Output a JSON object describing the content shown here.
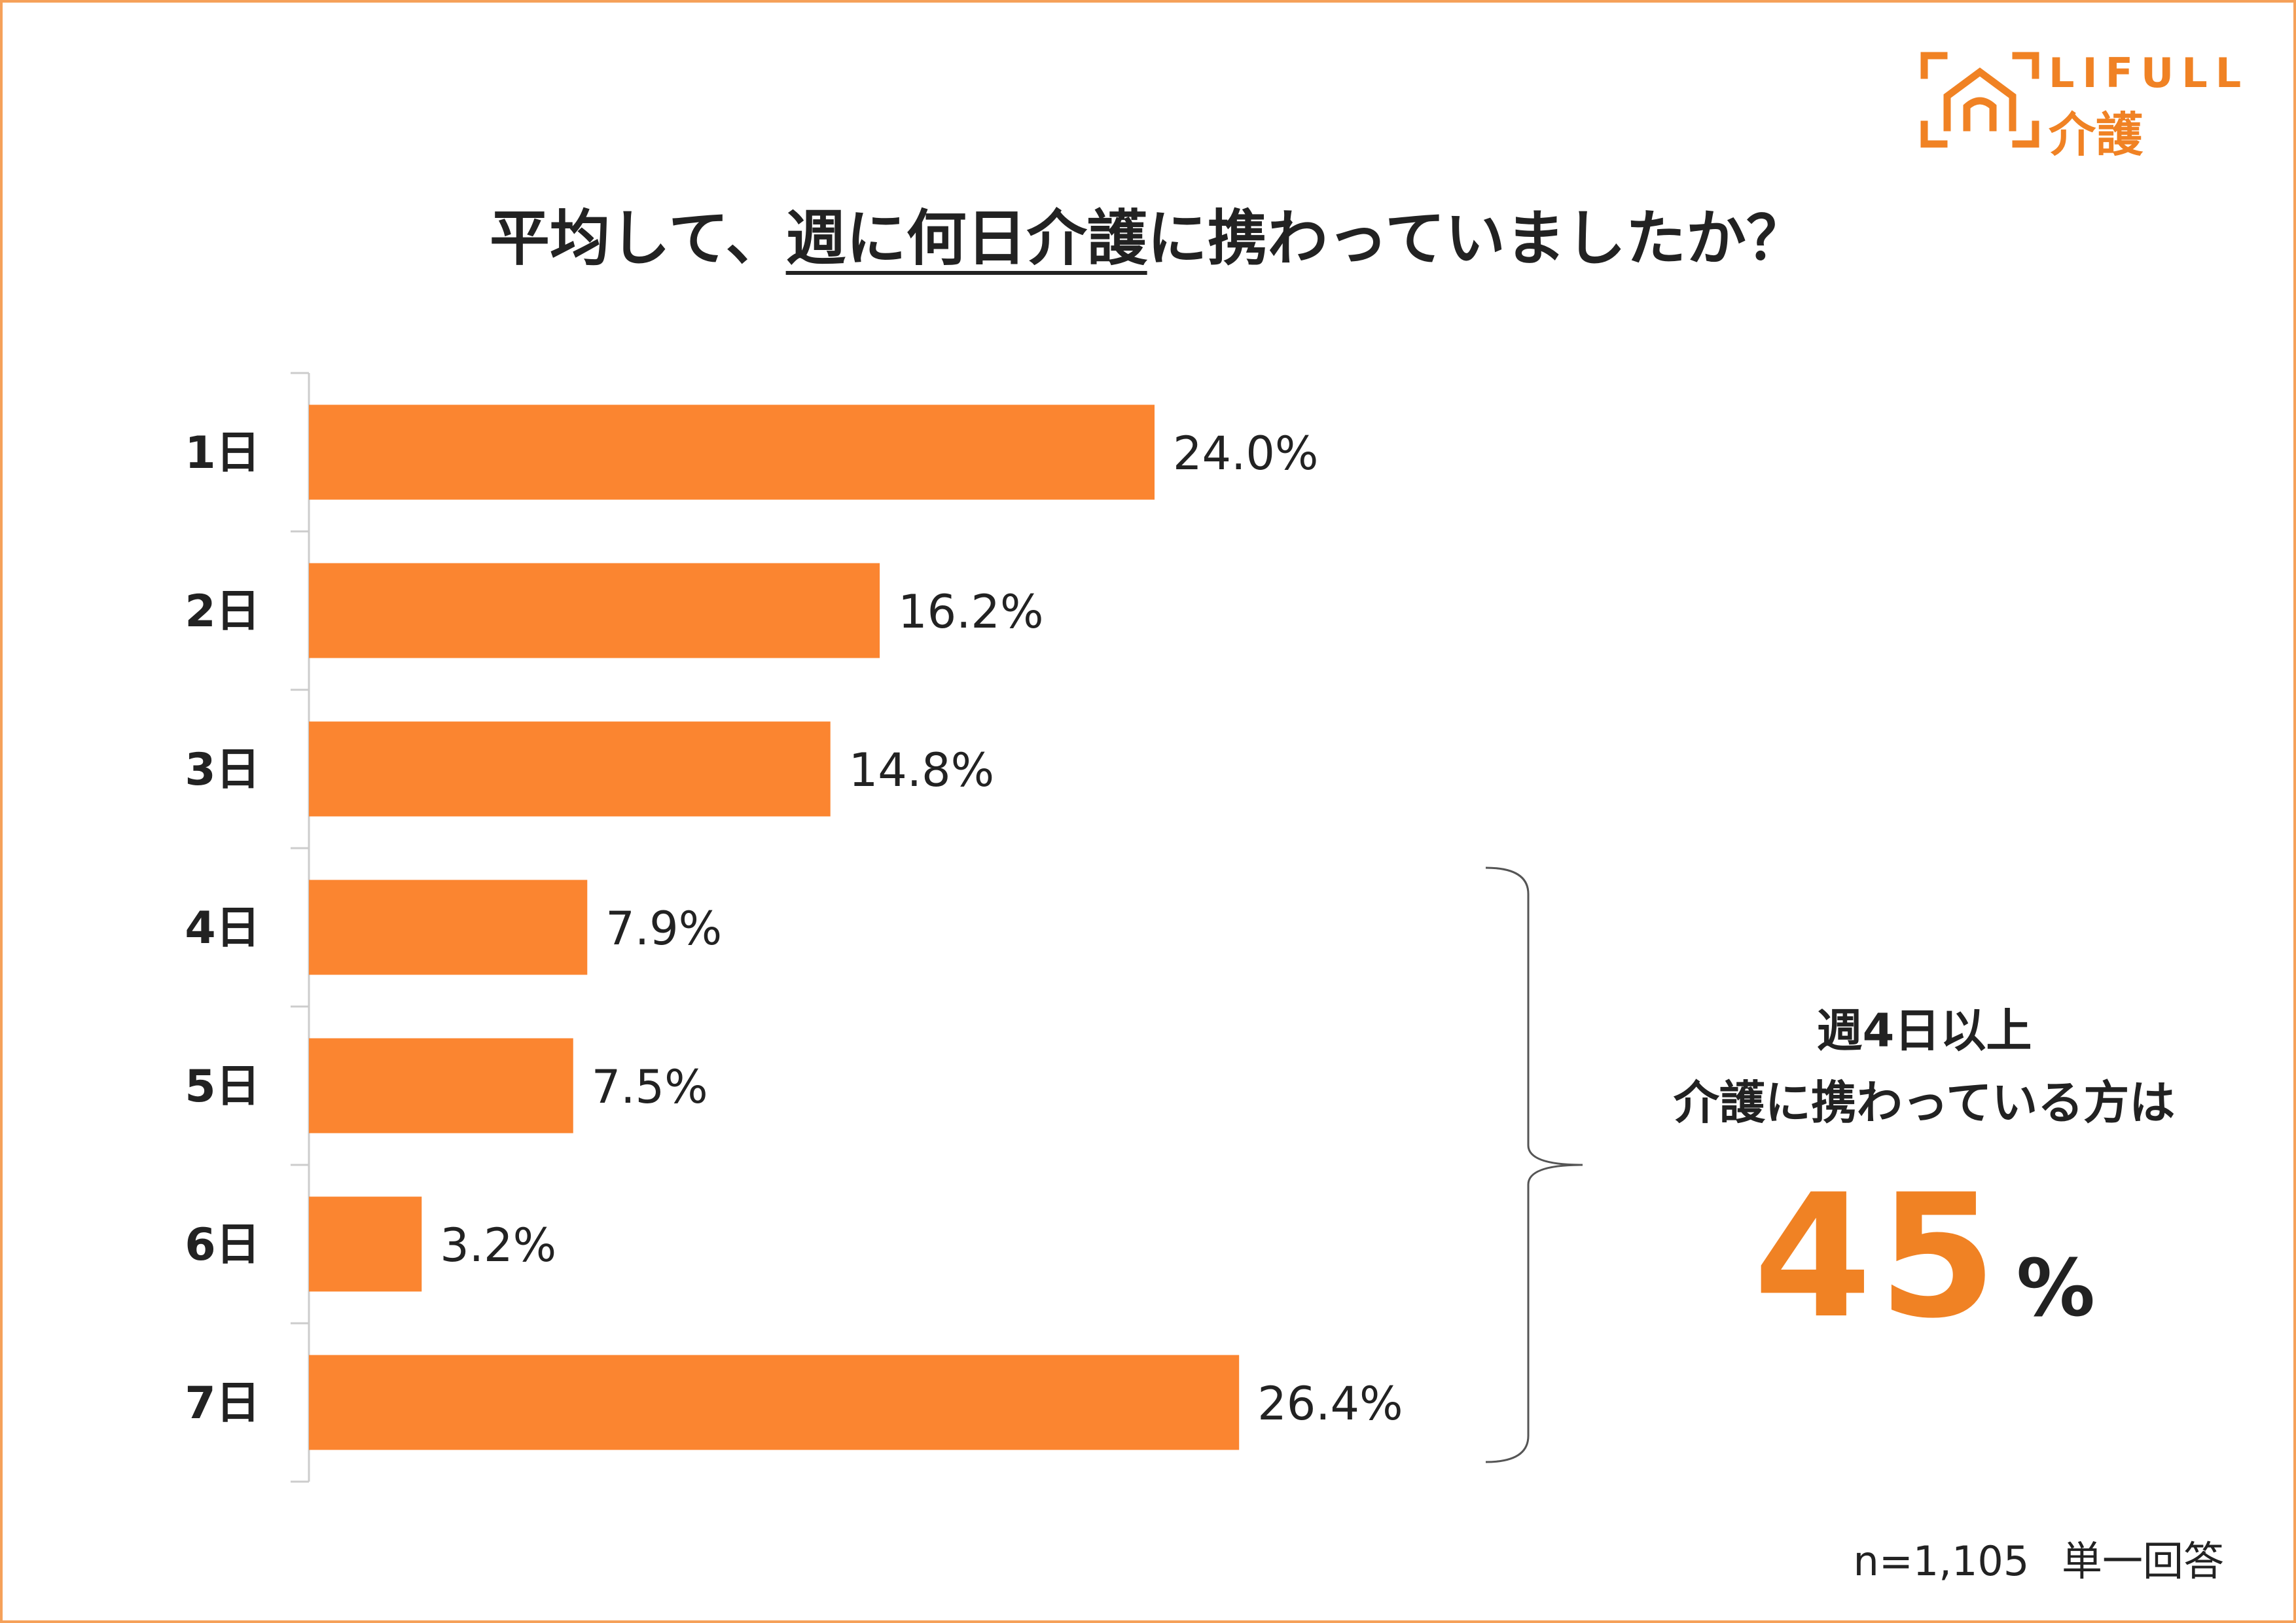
{
  "logo": {
    "brand": "LIFULL",
    "sub": "介護",
    "icon": "house-bracket-icon"
  },
  "title": {
    "part1": "平均して、",
    "underlined": "週に何日介護",
    "part2": "に携わっていましたか？"
  },
  "chart_data": {
    "type": "bar",
    "orientation": "horizontal",
    "categories": [
      "1日",
      "2日",
      "3日",
      "4日",
      "5日",
      "6日",
      "7日"
    ],
    "values": [
      24.0,
      16.2,
      14.8,
      7.9,
      7.5,
      3.2,
      26.4
    ],
    "value_labels": [
      "24.0%",
      "16.2%",
      "14.8%",
      "7.9%",
      "7.5%",
      "3.2%",
      "26.4%"
    ],
    "title": "平均して、週に何日介護に携わっていましたか？",
    "xlabel": "",
    "ylabel": "",
    "xlim": [
      0,
      30
    ],
    "grid": false,
    "bar_color": "#fb8530"
  },
  "callout": {
    "line1": "週4日以上",
    "line2": "介護に携わっている方は",
    "number": "45",
    "unit": "%"
  },
  "footnote": "n=1,105 単一回答",
  "colors": {
    "accent": "#f08224",
    "bar": "#fb8530",
    "text": "#222222",
    "axis": "#cccccc"
  }
}
